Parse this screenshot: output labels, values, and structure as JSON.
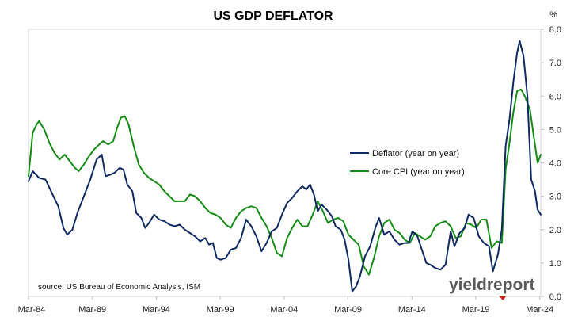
{
  "chart_data": {
    "type": "line",
    "title": "US GDP DEFLATOR",
    "ylabel": "%",
    "ylim": [
      0,
      8
    ],
    "yticks": [
      "0.0",
      "1.0",
      "2.0",
      "3.0",
      "4.0",
      "5.0",
      "6.0",
      "7.0",
      "8.0"
    ],
    "xlim": [
      1984.17,
      2024.25
    ],
    "xticks": [
      {
        "label": "Mar-84",
        "x": 1984.17
      },
      {
        "label": "Mar-89",
        "x": 1989.17
      },
      {
        "label": "Mar-94",
        "x": 1994.17
      },
      {
        "label": "Mar-99",
        "x": 1999.17
      },
      {
        "label": "Mar-04",
        "x": 2004.17
      },
      {
        "label": "Mar-09",
        "x": 2009.17
      },
      {
        "label": "Mar-14",
        "x": 2014.17
      },
      {
        "label": "Mar-19",
        "x": 2019.17
      },
      {
        "label": "Mar-24",
        "x": 2024.17
      }
    ],
    "legend_position": "center-right",
    "grid": false,
    "series": [
      {
        "name": "Deflator (year on year)",
        "color": "#0f2a63",
        "points": [
          [
            1984.17,
            3.45
          ],
          [
            1984.5,
            3.75
          ],
          [
            1985.0,
            3.55
          ],
          [
            1985.5,
            3.5
          ],
          [
            1986.0,
            3.1
          ],
          [
            1986.5,
            2.7
          ],
          [
            1986.9,
            2.05
          ],
          [
            1987.2,
            1.85
          ],
          [
            1987.6,
            2.0
          ],
          [
            1988.0,
            2.5
          ],
          [
            1988.5,
            3.0
          ],
          [
            1989.0,
            3.5
          ],
          [
            1989.5,
            4.1
          ],
          [
            1989.9,
            4.25
          ],
          [
            1990.2,
            3.6
          ],
          [
            1990.6,
            3.65
          ],
          [
            1990.9,
            3.7
          ],
          [
            1991.3,
            3.85
          ],
          [
            1991.6,
            3.8
          ],
          [
            1991.9,
            3.35
          ],
          [
            1992.3,
            3.15
          ],
          [
            1992.6,
            2.5
          ],
          [
            1993.0,
            2.35
          ],
          [
            1993.3,
            2.05
          ],
          [
            1993.6,
            2.2
          ],
          [
            1994.0,
            2.45
          ],
          [
            1994.4,
            2.3
          ],
          [
            1994.8,
            2.25
          ],
          [
            1995.2,
            2.15
          ],
          [
            1995.6,
            2.1
          ],
          [
            1996.0,
            2.15
          ],
          [
            1996.4,
            2.0
          ],
          [
            1996.8,
            1.9
          ],
          [
            1997.2,
            1.8
          ],
          [
            1997.6,
            1.65
          ],
          [
            1998.0,
            1.75
          ],
          [
            1998.3,
            1.55
          ],
          [
            1998.6,
            1.6
          ],
          [
            1998.9,
            1.15
          ],
          [
            1999.2,
            1.1
          ],
          [
            1999.6,
            1.15
          ],
          [
            2000.0,
            1.4
          ],
          [
            2000.4,
            1.45
          ],
          [
            2000.8,
            1.75
          ],
          [
            2001.2,
            2.3
          ],
          [
            2001.6,
            2.1
          ],
          [
            2002.0,
            1.8
          ],
          [
            2002.4,
            1.35
          ],
          [
            2002.8,
            1.6
          ],
          [
            2003.2,
            1.95
          ],
          [
            2003.6,
            2.05
          ],
          [
            2004.0,
            2.45
          ],
          [
            2004.4,
            2.8
          ],
          [
            2004.8,
            2.95
          ],
          [
            2005.2,
            3.15
          ],
          [
            2005.6,
            3.3
          ],
          [
            2005.9,
            3.2
          ],
          [
            2006.2,
            3.35
          ],
          [
            2006.5,
            3.05
          ],
          [
            2006.8,
            2.55
          ],
          [
            2007.1,
            2.75
          ],
          [
            2007.5,
            2.6
          ],
          [
            2007.9,
            2.4
          ],
          [
            2008.2,
            2.1
          ],
          [
            2008.6,
            2.0
          ],
          [
            2008.9,
            1.7
          ],
          [
            2009.2,
            1.1
          ],
          [
            2009.5,
            0.15
          ],
          [
            2009.8,
            0.3
          ],
          [
            2010.1,
            0.6
          ],
          [
            2010.5,
            1.2
          ],
          [
            2010.9,
            1.5
          ],
          [
            2011.3,
            2.05
          ],
          [
            2011.6,
            2.35
          ],
          [
            2012.0,
            1.85
          ],
          [
            2012.4,
            1.95
          ],
          [
            2012.8,
            1.7
          ],
          [
            2013.2,
            1.55
          ],
          [
            2013.6,
            1.6
          ],
          [
            2013.9,
            1.6
          ],
          [
            2014.2,
            1.95
          ],
          [
            2014.6,
            1.8
          ],
          [
            2014.9,
            1.45
          ],
          [
            2015.3,
            1.0
          ],
          [
            2015.6,
            0.95
          ],
          [
            2016.0,
            0.85
          ],
          [
            2016.4,
            0.8
          ],
          [
            2016.8,
            0.95
          ],
          [
            2017.2,
            1.95
          ],
          [
            2017.5,
            1.5
          ],
          [
            2017.9,
            1.9
          ],
          [
            2018.3,
            2.05
          ],
          [
            2018.6,
            2.45
          ],
          [
            2019.0,
            2.35
          ],
          [
            2019.4,
            1.8
          ],
          [
            2019.8,
            1.6
          ],
          [
            2020.2,
            1.5
          ],
          [
            2020.5,
            0.75
          ],
          [
            2020.9,
            1.25
          ],
          [
            2021.2,
            2.0
          ],
          [
            2021.5,
            4.5
          ],
          [
            2021.8,
            5.3
          ],
          [
            2022.1,
            6.4
          ],
          [
            2022.4,
            7.3
          ],
          [
            2022.6,
            7.65
          ],
          [
            2022.9,
            7.2
          ],
          [
            2023.2,
            6.0
          ],
          [
            2023.5,
            3.5
          ],
          [
            2023.8,
            3.15
          ],
          [
            2024.0,
            2.6
          ],
          [
            2024.25,
            2.45
          ]
        ]
      },
      {
        "name": "Core CPI (year on year)",
        "color": "#148c14",
        "points": [
          [
            1984.17,
            3.6
          ],
          [
            1984.5,
            4.9
          ],
          [
            1984.8,
            5.15
          ],
          [
            1985.0,
            5.25
          ],
          [
            1985.4,
            5.0
          ],
          [
            1985.8,
            4.6
          ],
          [
            1986.2,
            4.3
          ],
          [
            1986.6,
            4.1
          ],
          [
            1987.0,
            4.25
          ],
          [
            1987.4,
            4.05
          ],
          [
            1987.8,
            3.85
          ],
          [
            1988.1,
            3.75
          ],
          [
            1988.5,
            3.95
          ],
          [
            1988.9,
            4.2
          ],
          [
            1989.3,
            4.4
          ],
          [
            1989.7,
            4.55
          ],
          [
            1990.0,
            4.65
          ],
          [
            1990.4,
            4.55
          ],
          [
            1990.8,
            4.65
          ],
          [
            1991.1,
            5.05
          ],
          [
            1991.4,
            5.35
          ],
          [
            1991.7,
            5.4
          ],
          [
            1992.0,
            5.15
          ],
          [
            1992.4,
            4.5
          ],
          [
            1992.8,
            3.95
          ],
          [
            1993.2,
            3.7
          ],
          [
            1993.6,
            3.55
          ],
          [
            1994.0,
            3.45
          ],
          [
            1994.4,
            3.35
          ],
          [
            1994.8,
            3.15
          ],
          [
            1995.2,
            3.0
          ],
          [
            1995.6,
            2.85
          ],
          [
            1996.0,
            2.85
          ],
          [
            1996.4,
            2.85
          ],
          [
            1996.8,
            3.05
          ],
          [
            1997.2,
            3.0
          ],
          [
            1997.6,
            2.85
          ],
          [
            1998.0,
            2.65
          ],
          [
            1998.4,
            2.5
          ],
          [
            1998.8,
            2.45
          ],
          [
            1999.2,
            2.35
          ],
          [
            1999.6,
            2.15
          ],
          [
            2000.0,
            2.05
          ],
          [
            2000.4,
            2.35
          ],
          [
            2000.8,
            2.55
          ],
          [
            2001.2,
            2.65
          ],
          [
            2001.6,
            2.7
          ],
          [
            2002.0,
            2.65
          ],
          [
            2002.4,
            2.35
          ],
          [
            2002.8,
            2.1
          ],
          [
            2003.2,
            1.75
          ],
          [
            2003.6,
            1.3
          ],
          [
            2004.0,
            1.2
          ],
          [
            2004.4,
            1.75
          ],
          [
            2004.8,
            2.05
          ],
          [
            2005.2,
            2.3
          ],
          [
            2005.6,
            2.1
          ],
          [
            2006.0,
            2.1
          ],
          [
            2006.4,
            2.45
          ],
          [
            2006.8,
            2.85
          ],
          [
            2007.2,
            2.55
          ],
          [
            2007.6,
            2.2
          ],
          [
            2008.0,
            2.3
          ],
          [
            2008.4,
            2.35
          ],
          [
            2008.8,
            2.25
          ],
          [
            2009.2,
            1.85
          ],
          [
            2009.6,
            1.7
          ],
          [
            2010.0,
            1.55
          ],
          [
            2010.4,
            0.9
          ],
          [
            2010.8,
            0.65
          ],
          [
            2011.2,
            1.15
          ],
          [
            2011.6,
            1.8
          ],
          [
            2012.0,
            2.2
          ],
          [
            2012.4,
            2.3
          ],
          [
            2012.8,
            2.0
          ],
          [
            2013.2,
            1.9
          ],
          [
            2013.6,
            1.7
          ],
          [
            2014.0,
            1.6
          ],
          [
            2014.4,
            1.9
          ],
          [
            2014.8,
            1.8
          ],
          [
            2015.2,
            1.7
          ],
          [
            2015.6,
            1.8
          ],
          [
            2016.0,
            2.1
          ],
          [
            2016.4,
            2.2
          ],
          [
            2016.8,
            2.25
          ],
          [
            2017.2,
            2.1
          ],
          [
            2017.6,
            1.75
          ],
          [
            2018.0,
            1.8
          ],
          [
            2018.4,
            2.2
          ],
          [
            2018.8,
            2.15
          ],
          [
            2019.2,
            2.05
          ],
          [
            2019.6,
            2.3
          ],
          [
            2020.0,
            2.3
          ],
          [
            2020.4,
            1.45
          ],
          [
            2020.8,
            1.65
          ],
          [
            2021.2,
            1.6
          ],
          [
            2021.5,
            3.8
          ],
          [
            2021.8,
            4.6
          ],
          [
            2022.1,
            5.5
          ],
          [
            2022.4,
            6.15
          ],
          [
            2022.7,
            6.2
          ],
          [
            2023.0,
            6.0
          ],
          [
            2023.4,
            5.6
          ],
          [
            2023.7,
            4.8
          ],
          [
            2024.0,
            4.0
          ],
          [
            2024.25,
            4.25
          ]
        ]
      }
    ]
  },
  "source_text": "source: US Bureau of Economic Analysis, ISM",
  "logo": {
    "text": "yieldreport"
  }
}
